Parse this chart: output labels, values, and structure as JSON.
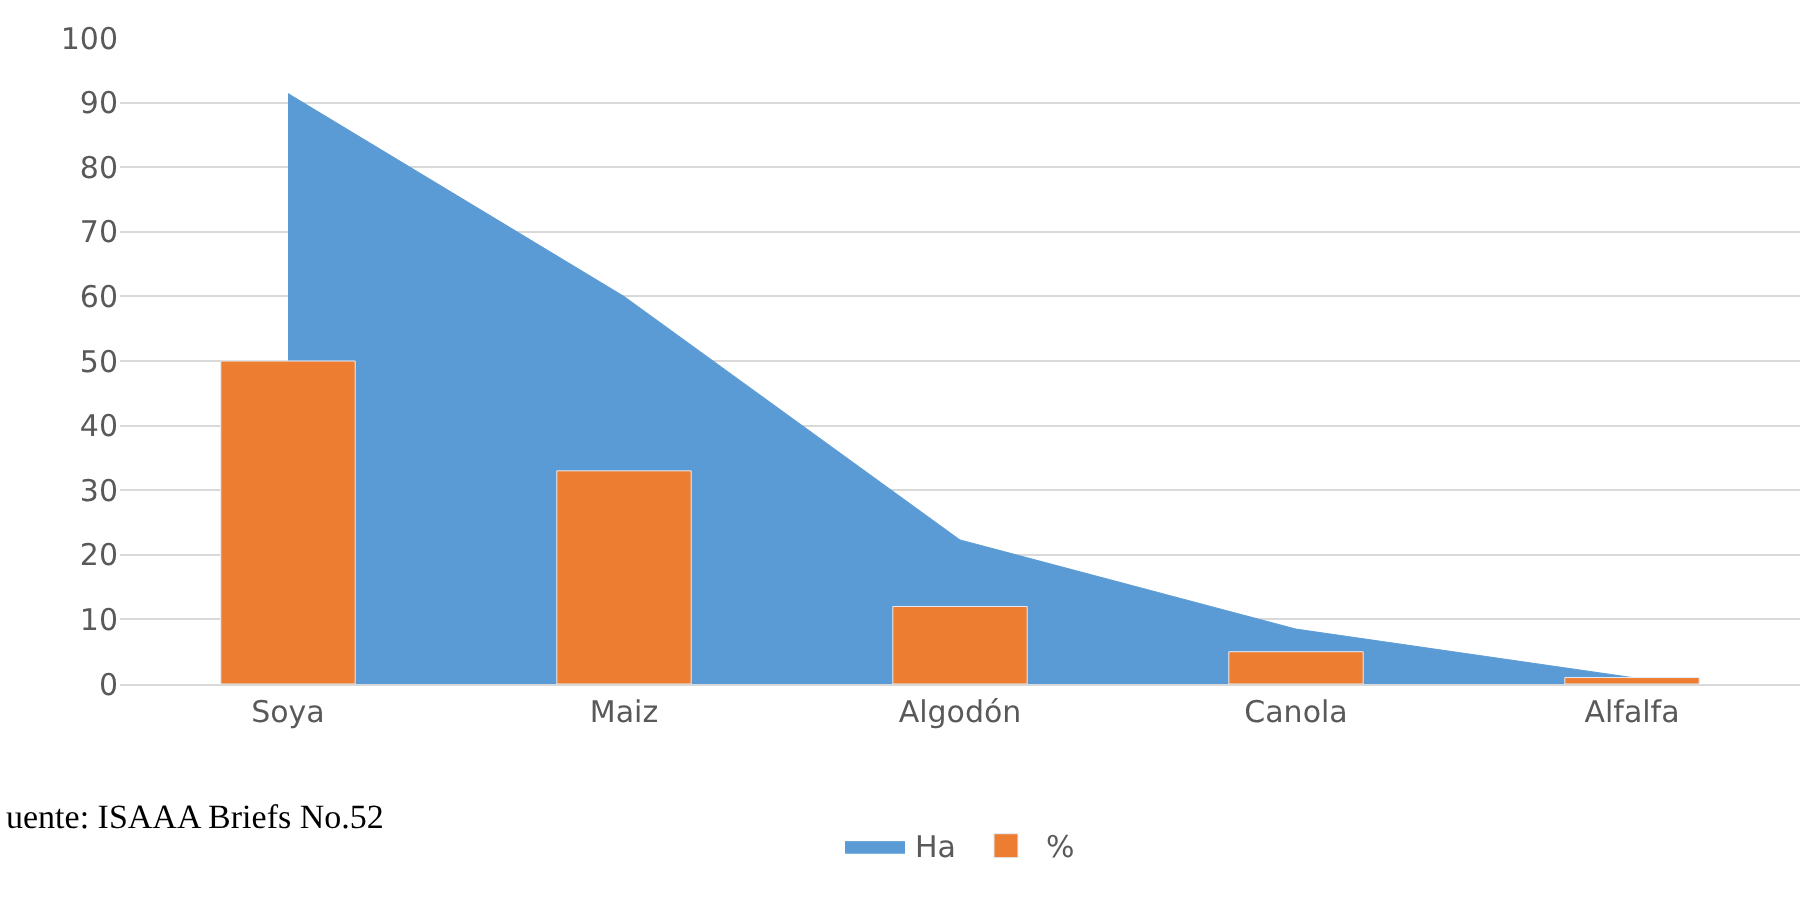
{
  "chart_data": {
    "type": "bar",
    "categories": [
      "Soya",
      "Maiz",
      "Algodón",
      "Canola",
      "Alfalfa"
    ],
    "series": [
      {
        "name": "Ha",
        "type": "area",
        "color": "#5b9bd5",
        "values": [
          91.4,
          60,
          22.3,
          8.5,
          1
        ]
      },
      {
        "name": "%",
        "color": "#ed7d31",
        "values": [
          50,
          33,
          12,
          5,
          1
        ]
      }
    ],
    "ylim": [
      0,
      100
    ],
    "yticks": [
      0,
      10,
      20,
      30,
      40,
      50,
      60,
      70,
      80,
      90,
      100
    ],
    "grid": "y",
    "legend": "bottom",
    "annotations": [
      "uente: ISAAA Briefs No.52"
    ]
  }
}
